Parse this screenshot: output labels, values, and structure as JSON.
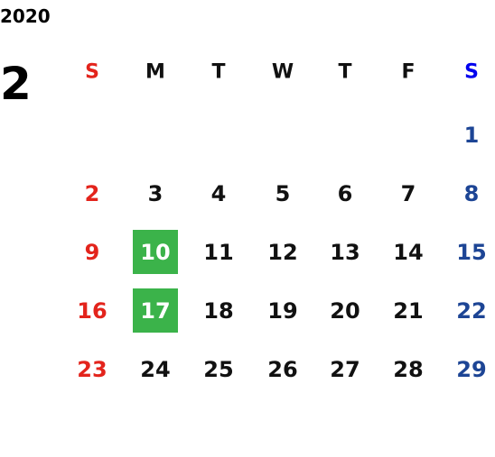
{
  "year": "2020",
  "month": "2",
  "weekdays": [
    "S",
    "M",
    "T",
    "W",
    "T",
    "F",
    "S"
  ],
  "weeks": [
    [
      null,
      null,
      null,
      null,
      null,
      null,
      1
    ],
    [
      2,
      3,
      4,
      5,
      6,
      7,
      8
    ],
    [
      9,
      10,
      11,
      12,
      13,
      14,
      15
    ],
    [
      16,
      17,
      18,
      19,
      20,
      21,
      22
    ],
    [
      23,
      24,
      25,
      26,
      27,
      28,
      29
    ]
  ],
  "highlighted_days": [
    10,
    17
  ],
  "colors": {
    "sunday": "#e3241c",
    "saturday_header": "#0000ee",
    "saturday": "#1d4595",
    "weekday": "#111111",
    "highlight": "#3bb34a",
    "highlight_text": "#ffffff"
  }
}
